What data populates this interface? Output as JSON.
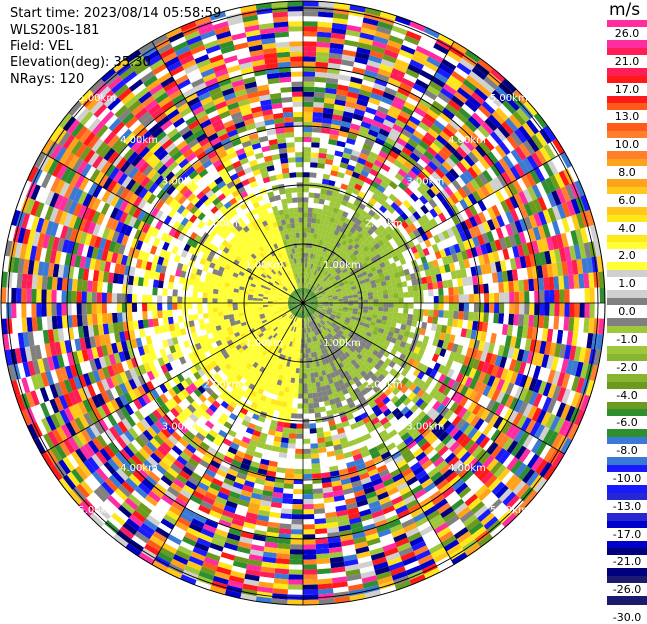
{
  "header": {
    "start_time": "Start time: 2023/08/14 05:58:59",
    "instrument": "WLS200s-181",
    "field": "Field: VEL",
    "elevation": "Elevation(deg): 35.30",
    "nrays": "NRays: 120"
  },
  "colorbar": {
    "unit": "m/s",
    "labels": [
      "26.0",
      "21.0",
      "17.0",
      "13.0",
      "10.0",
      "8.0",
      "6.0",
      "4.0",
      "2.0",
      "1.0",
      "0.0",
      "-1.0",
      "-2.0",
      "-4.0",
      "-6.0",
      "-8.0",
      "-10.0",
      "-13.0",
      "-17.0",
      "-21.0",
      "-26.0",
      "-30.0"
    ],
    "colors": [
      "#ff2da0",
      "#ff1d55",
      "#ff1a1a",
      "#ff5a1a",
      "#ff7f2a",
      "#ffa31a",
      "#ffc81a",
      "#ffe81a",
      "#ffff33",
      "#d0d0d0",
      "#808080",
      "#9ec73a",
      "#88b52e",
      "#6b9a1e",
      "#2f8f2f",
      "#3a7ad6",
      "#1a1aff",
      "#2626d4",
      "#0000c8",
      "#00007f",
      "#1a1a6e"
    ]
  },
  "rings": {
    "labels": [
      "1.00km",
      "2.00km",
      "3.00km",
      "4.00km",
      "5.00km"
    ]
  }
}
